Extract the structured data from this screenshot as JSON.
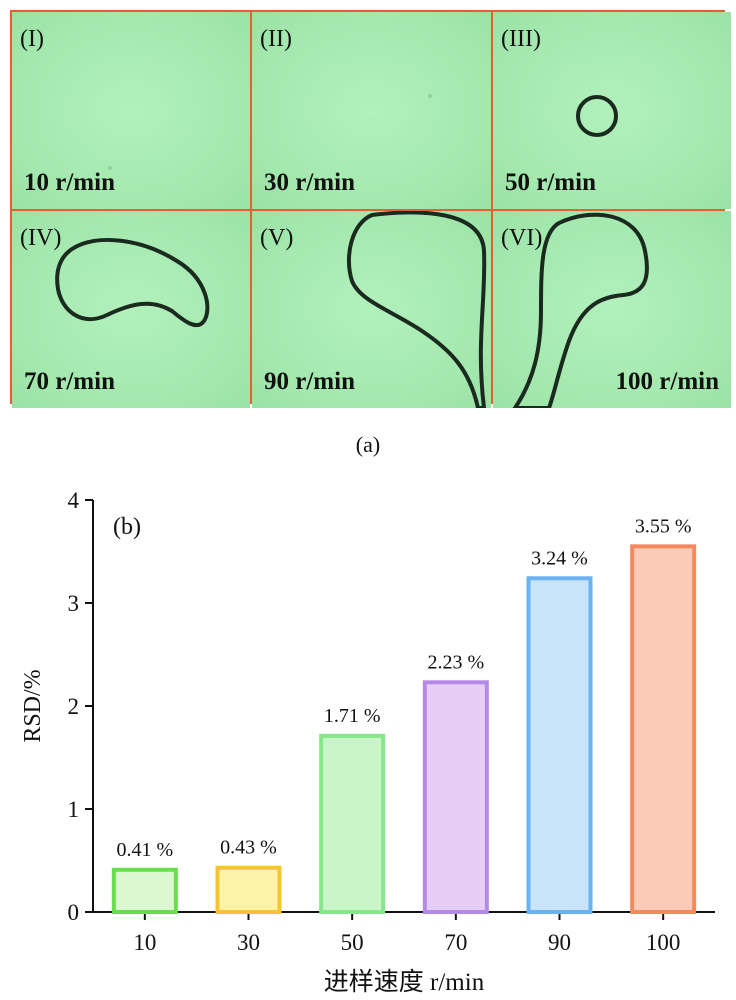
{
  "panel_a": {
    "caption": "(a)",
    "cells": [
      {
        "roman": "(I)",
        "speed": "10 r/min"
      },
      {
        "roman": "(II)",
        "speed": "30 r/min"
      },
      {
        "roman": "(III)",
        "speed": "50 r/min"
      },
      {
        "roman": "(IV)",
        "speed": "70 r/min"
      },
      {
        "roman": "(V)",
        "speed": "90 r/min"
      },
      {
        "roman": "(VI)",
        "speed": "100 r/min"
      }
    ],
    "colors": {
      "background": "#a9ecb4",
      "border": "#e0632f"
    }
  },
  "chart_data": {
    "type": "bar",
    "panel_label": "(b)",
    "categories": [
      "10",
      "30",
      "50",
      "70",
      "90",
      "100"
    ],
    "values": [
      0.41,
      0.43,
      1.71,
      2.23,
      3.24,
      3.55
    ],
    "data_labels": [
      "0.41 %",
      "0.43 %",
      "1.71 %",
      "2.23 %",
      "3.24 %",
      "3.55 %"
    ],
    "xlabel": "进样速度 r/min",
    "ylabel": "RSD/%",
    "ylim": [
      0,
      4
    ],
    "yticks": [
      "0",
      "1",
      "2",
      "3",
      "4"
    ],
    "grid": false,
    "bar_colors": [
      {
        "fill": "#dcf8d0",
        "stroke": "#66e04a"
      },
      {
        "fill": "#fdf3a8",
        "stroke": "#f4c531"
      },
      {
        "fill": "#c9f5c9",
        "stroke": "#86e88a"
      },
      {
        "fill": "#e6cdf6",
        "stroke": "#b58ae6"
      },
      {
        "fill": "#c7e4f9",
        "stroke": "#6ab3f0"
      },
      {
        "fill": "#fbcbb8",
        "stroke": "#f28a5e"
      }
    ]
  }
}
